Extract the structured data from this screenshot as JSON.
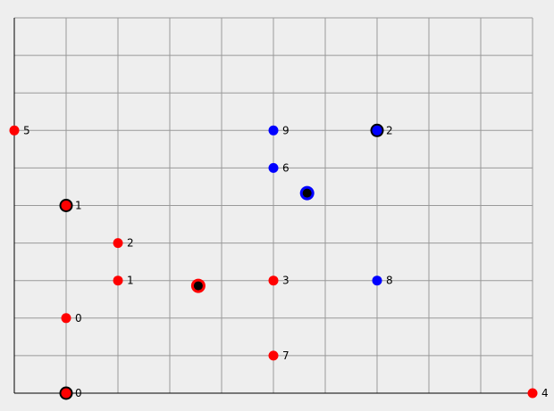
{
  "chart_data": {
    "type": "scatter",
    "title": "",
    "xlabel": "",
    "ylabel": "",
    "grid": true,
    "xlim": [
      0,
      10
    ],
    "ylim": [
      0,
      10
    ],
    "colors": {
      "red": "#ff0000",
      "blue": "#0000ff",
      "centroid_fill": "#000000",
      "background": "#eeeeee",
      "grid": "#999999"
    },
    "points": [
      {
        "x": 0,
        "y": 7,
        "label": "5",
        "color": "red"
      },
      {
        "x": 5,
        "y": 7,
        "label": "9",
        "color": "blue"
      },
      {
        "x": 5,
        "y": 6,
        "label": "6",
        "color": "blue"
      },
      {
        "x": 1,
        "y": 5,
        "label": "1",
        "color": "red"
      },
      {
        "x": 2,
        "y": 4,
        "label": "2",
        "color": "red"
      },
      {
        "x": 2,
        "y": 3,
        "label": "1",
        "color": "red"
      },
      {
        "x": 5,
        "y": 3,
        "label": "3",
        "color": "red"
      },
      {
        "x": 7,
        "y": 3,
        "label": "8",
        "color": "blue"
      },
      {
        "x": 1,
        "y": 2,
        "label": "0",
        "color": "red"
      },
      {
        "x": 5,
        "y": 1,
        "label": "7",
        "color": "red"
      },
      {
        "x": 1,
        "y": 0,
        "label": "0",
        "color": "red"
      },
      {
        "x": 10,
        "y": 0,
        "label": "4",
        "color": "red"
      },
      {
        "x": 7,
        "y": 7,
        "label": "2",
        "color": "blue"
      }
    ],
    "highlighted": [
      {
        "x": 1,
        "y": 5,
        "color": "red"
      },
      {
        "x": 1,
        "y": 0,
        "color": "red"
      },
      {
        "x": 7,
        "y": 7,
        "color": "blue"
      }
    ],
    "centroids": [
      {
        "x": 5.65,
        "y": 5.33,
        "color": "blue"
      },
      {
        "x": 3.55,
        "y": 2.86,
        "color": "red"
      }
    ]
  }
}
